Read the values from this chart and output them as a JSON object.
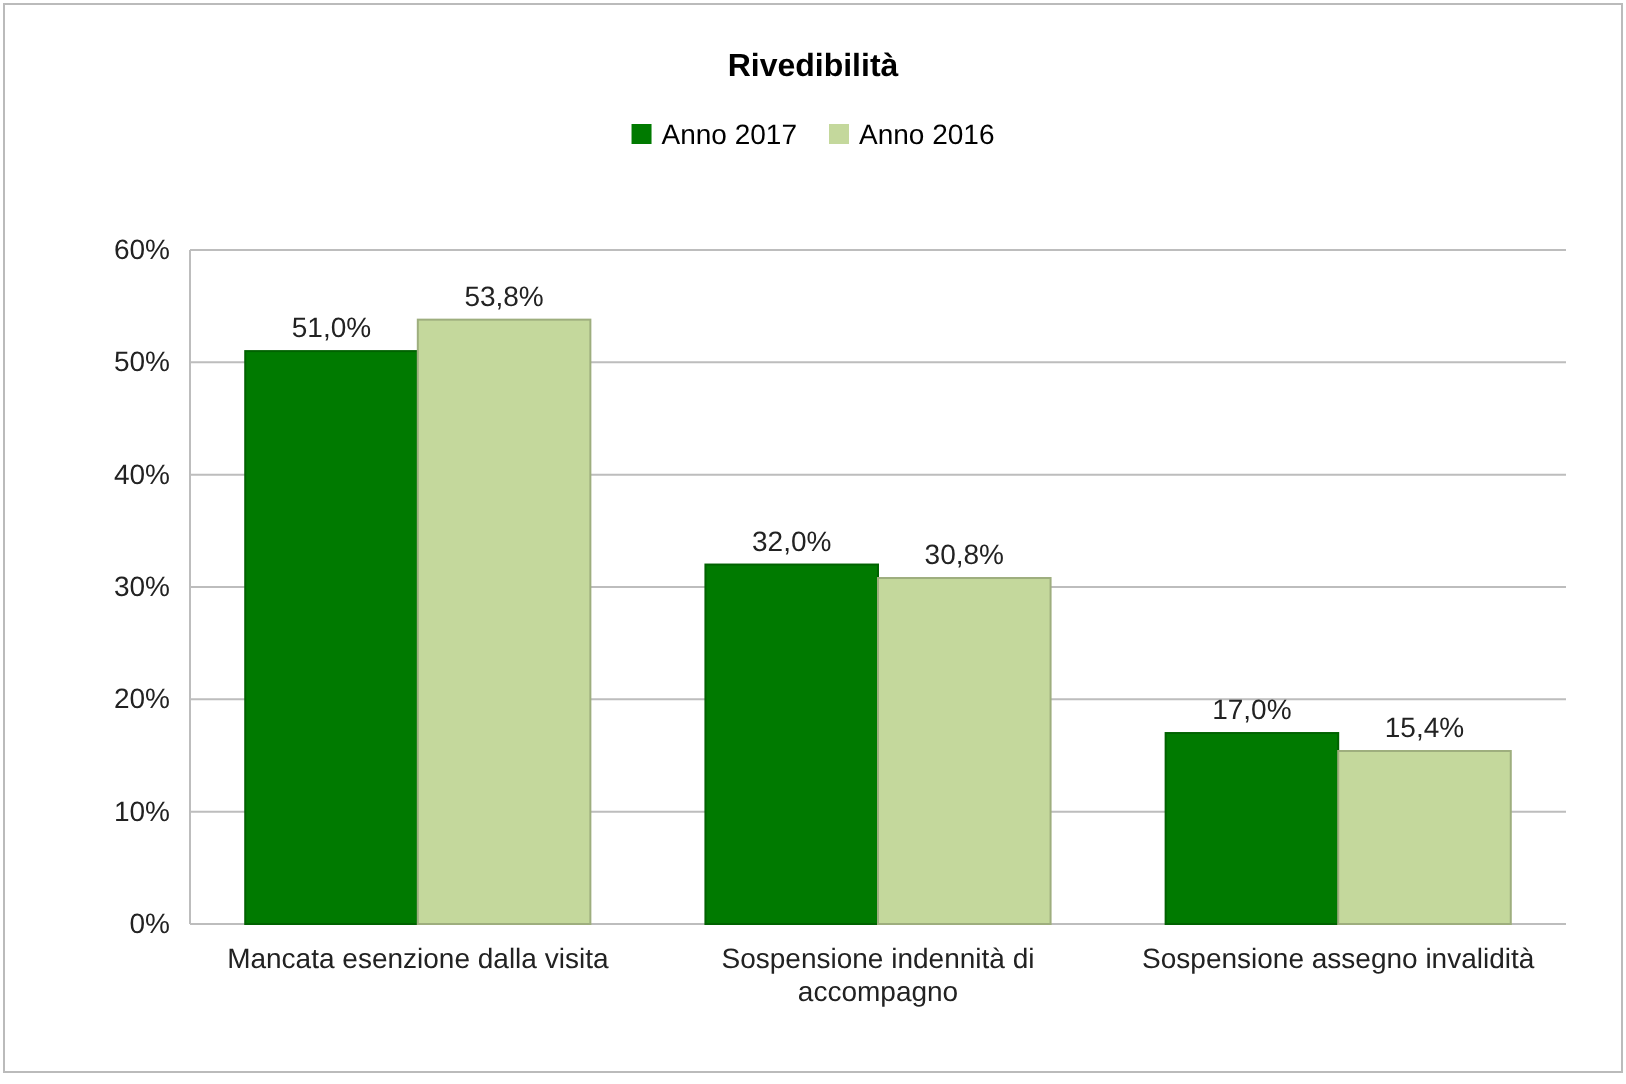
{
  "chart_data": {
    "type": "bar",
    "title": "Rivedibilità",
    "categories": [
      "Mancata esenzione dalla visita",
      "Sospensione indennità di accompagno",
      "Sospensione assegno invalidità"
    ],
    "series": [
      {
        "name": "Anno 2017",
        "color": "#007a00",
        "values": [
          51.0,
          32.0,
          17.0
        ],
        "value_labels": [
          "51,0%",
          "32,0%",
          "17,0%"
        ]
      },
      {
        "name": "Anno 2016",
        "color": "#c4d89c",
        "values": [
          53.8,
          30.8,
          15.4
        ],
        "value_labels": [
          "53,8%",
          "30,8%",
          "15,4%"
        ]
      }
    ],
    "ylim": [
      0,
      60
    ],
    "yticks": [
      {
        "value": 0,
        "label": "0%"
      },
      {
        "value": 10,
        "label": "10%"
      },
      {
        "value": 20,
        "label": "20%"
      },
      {
        "value": 30,
        "label": "30%"
      },
      {
        "value": 40,
        "label": "40%"
      },
      {
        "value": 50,
        "label": "50%"
      },
      {
        "value": 60,
        "label": "60%"
      }
    ],
    "grid": "y",
    "legend": "top"
  }
}
